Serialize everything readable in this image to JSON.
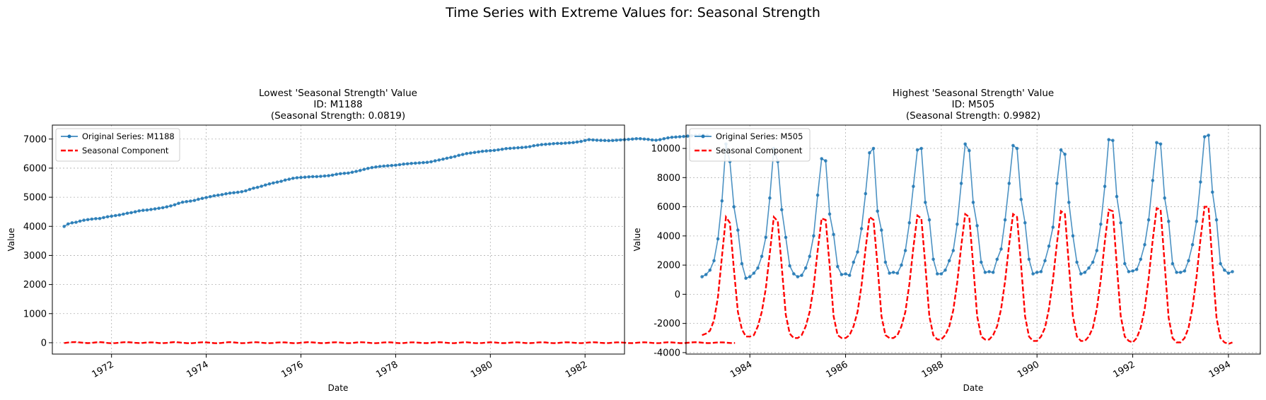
{
  "figure": {
    "suptitle": "Time Series with Extreme Values for: Seasonal Strength"
  },
  "chart_data": [
    {
      "type": "line",
      "title_lines": [
        "Lowest 'Seasonal Strength' Value",
        "ID: M1188",
        "(Seasonal Strength: 0.0819)"
      ],
      "xlabel": "Date",
      "ylabel": "Value",
      "x_ticks": [
        "1972",
        "1974",
        "1976",
        "1978",
        "1980",
        "1982"
      ],
      "y_ticks": [
        "0",
        "1000",
        "2000",
        "3000",
        "4000",
        "5000",
        "6000",
        "7000"
      ],
      "xlim": [
        "1970-10",
        "1982-11"
      ],
      "ylim": [
        -390,
        7480
      ],
      "grid": true,
      "legend_position": "upper-left",
      "series": [
        {
          "name": "Original Series: M1188",
          "color": "#1f77b4",
          "style": "solid-with-dot-markers",
          "start": "1971-01",
          "frequency": "monthly",
          "values": [
            3996,
            4082,
            4120,
            4140,
            4180,
            4210,
            4230,
            4250,
            4265,
            4270,
            4300,
            4330,
            4350,
            4370,
            4390,
            4420,
            4450,
            4470,
            4500,
            4530,
            4550,
            4560,
            4580,
            4600,
            4620,
            4640,
            4670,
            4700,
            4740,
            4790,
            4830,
            4850,
            4870,
            4890,
            4930,
            4960,
            4990,
            5020,
            5050,
            5070,
            5090,
            5120,
            5140,
            5155,
            5170,
            5190,
            5220,
            5270,
            5310,
            5340,
            5380,
            5420,
            5460,
            5490,
            5520,
            5550,
            5590,
            5620,
            5650,
            5670,
            5680,
            5690,
            5700,
            5710,
            5710,
            5720,
            5730,
            5740,
            5760,
            5790,
            5810,
            5820,
            5830,
            5860,
            5890,
            5920,
            5960,
            5990,
            6020,
            6040,
            6060,
            6070,
            6080,
            6090,
            6100,
            6120,
            6140,
            6150,
            6160,
            6170,
            6180,
            6190,
            6200,
            6220,
            6250,
            6280,
            6310,
            6340,
            6370,
            6400,
            6440,
            6470,
            6500,
            6520,
            6540,
            6560,
            6580,
            6590,
            6600,
            6610,
            6630,
            6650,
            6670,
            6680,
            6690,
            6700,
            6710,
            6720,
            6740,
            6770,
            6790,
            6810,
            6820,
            6830,
            6840,
            6850,
            6850,
            6860,
            6870,
            6880,
            6900,
            6920,
            6950,
            6980,
            6970,
            6960,
            6955,
            6950,
            6945,
            6950,
            6960,
            6970,
            6980,
            6990,
            7000,
            7010,
            7010,
            7000,
            6990,
            6970,
            6960,
            6980,
            7010,
            7040,
            7060,
            7070,
            7080,
            7090,
            7100,
            7110,
            7120,
            7130,
            7135,
            7120
          ]
        },
        {
          "name": "Seasonal Component",
          "color": "#ff0000",
          "style": "dashed",
          "start": "1971-01",
          "frequency": "monthly",
          "values": [
            -10,
            5,
            18,
            22,
            8,
            -5,
            -14,
            -6,
            10,
            20,
            12,
            -8,
            -18,
            -10,
            2,
            15,
            20,
            10,
            -4,
            -12,
            -6,
            8,
            14,
            6,
            -10,
            -16,
            -6,
            10,
            22,
            14,
            -2,
            -14,
            -18,
            -8,
            6,
            16,
            12,
            -2,
            -14,
            -18,
            -6,
            10,
            20,
            12,
            -4,
            -16,
            -12,
            4,
            18,
            16,
            2,
            -10,
            -16,
            -8,
            6,
            14,
            10,
            -4,
            -14,
            -16,
            -4,
            12,
            20,
            12,
            -2,
            -14,
            -14,
            -2,
            10,
            16,
            6,
            -8,
            -16,
            -10,
            6,
            18,
            14,
            0,
            -12,
            -16,
            -6,
            8,
            16,
            10,
            -6,
            -16,
            -10,
            4,
            14,
            12,
            -2,
            -12,
            -14,
            -4,
            10,
            18,
            12,
            -4,
            -16,
            -14,
            0,
            14,
            16,
            4,
            -10,
            -16,
            -8,
            6,
            16,
            10,
            -4,
            -14,
            -12,
            2,
            14,
            14,
            2,
            -10,
            -14,
            -6,
            8,
            16,
            10,
            -6,
            -16,
            -12,
            4,
            16,
            14,
            0,
            -12,
            -16,
            -6,
            8,
            16,
            10,
            -4,
            -14,
            -12,
            2,
            14,
            12,
            0,
            -12,
            -14,
            -4,
            10,
            16,
            8,
            -6,
            -16,
            -10,
            6,
            16,
            12,
            -2,
            -14,
            -14,
            -2,
            12,
            18,
            10,
            -4,
            -14,
            -10,
            4,
            14,
            10,
            -2,
            -10,
            -8
          ]
        }
      ]
    },
    {
      "type": "line",
      "title_lines": [
        "Highest 'Seasonal Strength' Value",
        "ID: M505",
        "(Seasonal Strength: 0.9982)"
      ],
      "xlabel": "Date",
      "ylabel": "Value",
      "x_ticks": [
        "1984",
        "1986",
        "1988",
        "1990",
        "1992",
        "1994"
      ],
      "y_ticks": [
        "-4000",
        "-2000",
        "0",
        "2000",
        "4000",
        "6000",
        "8000",
        "10000"
      ],
      "xlim": [
        "1982-09",
        "1994-09"
      ],
      "ylim": [
        -4100,
        11600
      ],
      "grid": true,
      "legend_position": "upper-left",
      "series": [
        {
          "name": "Original Series: M505",
          "color": "#1f77b4",
          "style": "solid-with-dot-markers",
          "start": "1983-01",
          "frequency": "monthly",
          "values": [
            1200,
            1350,
            1650,
            2300,
            3800,
            6400,
            10300,
            9100,
            6000,
            4400,
            2100,
            1100,
            1200,
            1450,
            1800,
            2600,
            3900,
            6600,
            10000,
            9100,
            5800,
            3900,
            1950,
            1400,
            1200,
            1300,
            1800,
            2600,
            4000,
            6800,
            9300,
            9150,
            5500,
            4100,
            1900,
            1350,
            1400,
            1300,
            2200,
            2900,
            4500,
            6900,
            9700,
            10000,
            5700,
            4400,
            2200,
            1450,
            1500,
            1450,
            2000,
            3000,
            4900,
            7400,
            9900,
            10000,
            6300,
            5100,
            2400,
            1400,
            1400,
            1650,
            2300,
            3000,
            4800,
            7600,
            10300,
            9850,
            6300,
            4700,
            2200,
            1500,
            1550,
            1500,
            2400,
            3100,
            5100,
            7600,
            10200,
            10000,
            6500,
            4900,
            2400,
            1400,
            1500,
            1550,
            2300,
            3300,
            4600,
            7600,
            9900,
            9600,
            6300,
            4000,
            2200,
            1400,
            1500,
            1800,
            2200,
            3000,
            4800,
            7400,
            10600,
            10550,
            6700,
            4900,
            2100,
            1550,
            1600,
            1700,
            2400,
            3400,
            5100,
            7800,
            10400,
            10300,
            6600,
            5000,
            2100,
            1500,
            1500,
            1600,
            2300,
            3400,
            5000,
            7700,
            10800,
            10900,
            7000,
            5100,
            2100,
            1650,
            1450,
            1550
          ]
        },
        {
          "name": "Seasonal Component",
          "color": "#ff0000",
          "style": "dashed",
          "start": "1983-01",
          "frequency": "monthly",
          "values": [
            -2800,
            -2700,
            -2500,
            -1800,
            -200,
            2600,
            5300,
            4900,
            1700,
            -1200,
            -2400,
            -2900,
            -2900,
            -2800,
            -2200,
            -1200,
            400,
            2800,
            5300,
            5000,
            1900,
            -1400,
            -2700,
            -3000,
            -3000,
            -2800,
            -2200,
            -1200,
            500,
            3000,
            5200,
            5100,
            2000,
            -1500,
            -2800,
            -3000,
            -3000,
            -2800,
            -2200,
            -1200,
            600,
            3100,
            5300,
            5100,
            2000,
            -1500,
            -2800,
            -3000,
            -3000,
            -2800,
            -2200,
            -1200,
            700,
            3200,
            5400,
            5200,
            2000,
            -1500,
            -2800,
            -3100,
            -3100,
            -2800,
            -2200,
            -1100,
            800,
            3300,
            5500,
            5300,
            2000,
            -1500,
            -2900,
            -3100,
            -3100,
            -2800,
            -2200,
            -1000,
            900,
            3400,
            5500,
            5300,
            2000,
            -1500,
            -2900,
            -3200,
            -3200,
            -2900,
            -2300,
            -1000,
            1000,
            3500,
            5700,
            5500,
            2000,
            -1500,
            -2900,
            -3200,
            -3200,
            -2900,
            -2300,
            -1000,
            1000,
            3600,
            5800,
            5700,
            2000,
            -1500,
            -2900,
            -3200,
            -3300,
            -3000,
            -2300,
            -1000,
            1100,
            3700,
            5900,
            5800,
            2100,
            -1600,
            -3000,
            -3300,
            -3300,
            -3000,
            -2300,
            -900,
            1200,
            3800,
            6000,
            6000,
            2100,
            -1600,
            -3000,
            -3300,
            -3400,
            -3300
          ]
        }
      ]
    }
  ]
}
